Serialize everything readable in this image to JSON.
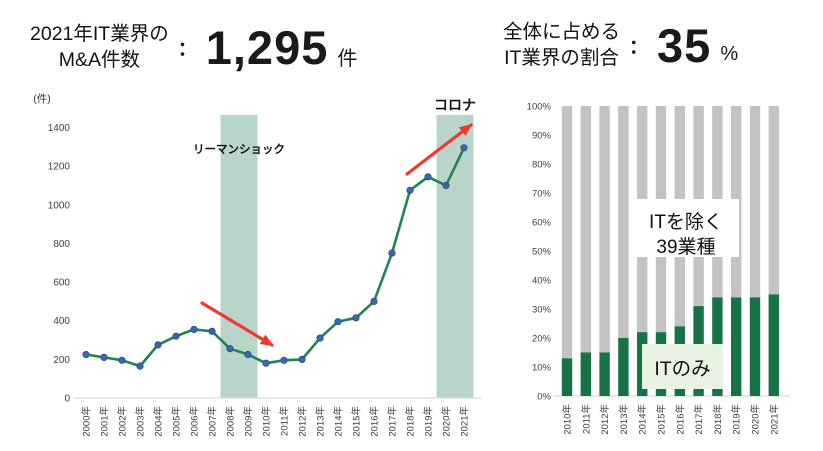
{
  "header_left": {
    "title_line1": "2021年IT業界の",
    "title_line2": "M&A件数",
    "separator": "：",
    "value": "1,295",
    "unit": "件"
  },
  "header_right": {
    "title_line1": "全体に占める",
    "title_line2": "IT業界の割合",
    "separator": "：",
    "value": "35",
    "unit": "%"
  },
  "chart_data": [
    {
      "type": "line",
      "ylabel": "(件)",
      "categories": [
        "2000年",
        "2001年",
        "2002年",
        "2003年",
        "2004年",
        "2005年",
        "2006年",
        "2007年",
        "2008年",
        "2009年",
        "2010年",
        "2011年",
        "2012年",
        "2013年",
        "2014年",
        "2015年",
        "2016年",
        "2017年",
        "2018年",
        "2019年",
        "2020年",
        "2021年"
      ],
      "values": [
        225,
        210,
        195,
        165,
        275,
        320,
        355,
        345,
        255,
        225,
        180,
        195,
        200,
        310,
        395,
        415,
        500,
        750,
        1075,
        1145,
        1100,
        1295
      ],
      "ylim": [
        0,
        1400
      ],
      "ytick_step": 200,
      "grid": false,
      "bands": [
        {
          "label": "リーマンショック",
          "from": "2008年",
          "to": "2009年"
        },
        {
          "label": "コロナ",
          "from": "2020年",
          "to": "2021年"
        }
      ],
      "arrows": [
        {
          "name": "decline-trend",
          "direction": "down"
        },
        {
          "name": "rise-trend",
          "direction": "up"
        }
      ],
      "colors": {
        "line": "#1e8456",
        "marker": "#3e68ad",
        "marker_edge": "#2a5291",
        "band": "#b9d4c9",
        "arrow": "#f03a2b",
        "axis_text": "#404040",
        "axis_line": "#d9d9d9"
      }
    },
    {
      "type": "stacked_bar",
      "categories": [
        "2010年",
        "2011年",
        "2012年",
        "2013年",
        "2014年",
        "2015年",
        "2016年",
        "2017年",
        "2018年",
        "2019年",
        "2020年",
        "2021年"
      ],
      "series": [
        {
          "name": "ITのみ",
          "color": "#177245",
          "values": [
            13,
            15,
            15,
            20,
            22,
            22,
            24,
            31,
            34,
            34,
            34,
            35
          ]
        },
        {
          "name": "ITを除く39業種",
          "color": "#c3c3c3",
          "values": [
            87,
            85,
            85,
            80,
            78,
            78,
            76,
            69,
            66,
            66,
            66,
            65
          ]
        }
      ],
      "ylim": [
        0,
        100
      ],
      "ytick_step": 10,
      "ytick_suffix": "%",
      "grid": false,
      "legend_overlays": [
        {
          "name": "excluding-it-label",
          "text_lines": [
            "ITを除く",
            "39業種"
          ],
          "bg": "#ffffff",
          "text_color": "#111111"
        },
        {
          "name": "it-only-label",
          "text_lines": [
            "ITのみ"
          ],
          "bg": "#e9f3e2",
          "text_color": "#111111"
        }
      ],
      "colors": {
        "axis_text": "#404040",
        "axis_line": "#d9d9d9"
      }
    }
  ]
}
